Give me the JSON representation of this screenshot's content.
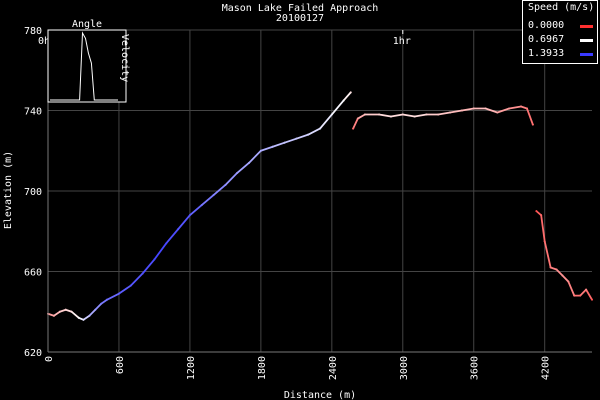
{
  "chart_data": {
    "type": "line",
    "title": "Mason Lake Failed Approach",
    "subtitle": "20100127",
    "xlabel": "Distance (m)",
    "ylabel": "Elevation (m)",
    "xlim": [
      0,
      4600
    ],
    "ylim": [
      620,
      780
    ],
    "xticks": [
      "0",
      "600",
      "1200",
      "1800",
      "2400",
      "3000",
      "3600",
      "4200"
    ],
    "yticks": [
      "620",
      "660",
      "700",
      "740",
      "780"
    ],
    "grid": true,
    "time_markers": [
      {
        "label": "0h",
        "x": 0
      },
      {
        "label": "1hr",
        "x": 3000
      }
    ],
    "legend": {
      "title": "Speed (m/s)",
      "placement": "top-right",
      "entries": [
        {
          "label": "0.0000",
          "color": "#ff3030"
        },
        {
          "label": "0.6967",
          "color": "#ffffff"
        },
        {
          "label": "1.3933",
          "color": "#3a3aff"
        }
      ]
    },
    "inset": {
      "title": "Angle",
      "side_label": "Velocity",
      "values": [
        0,
        0,
        0,
        0,
        0,
        0,
        0,
        0,
        0,
        0,
        0,
        1.0,
        0.92,
        0.7,
        0.55,
        0,
        0,
        0,
        0,
        0,
        0,
        0,
        0,
        0
      ]
    },
    "series": [
      {
        "name": "track",
        "points": [
          [
            0,
            639,
            0.35
          ],
          [
            50,
            638,
            0.4
          ],
          [
            100,
            640,
            0.5
          ],
          [
            150,
            641,
            0.55
          ],
          [
            200,
            640,
            0.6
          ],
          [
            260,
            637,
            0.7
          ],
          [
            300,
            636,
            0.8
          ],
          [
            350,
            638,
            0.95
          ],
          [
            400,
            641,
            1.05
          ],
          [
            450,
            644,
            1.15
          ],
          [
            500,
            646,
            1.2
          ],
          [
            600,
            649,
            1.25
          ],
          [
            700,
            653,
            1.3
          ],
          [
            800,
            659,
            1.3
          ],
          [
            900,
            666,
            1.35
          ],
          [
            1000,
            674,
            1.35
          ],
          [
            1100,
            681,
            1.3
          ],
          [
            1200,
            688,
            1.3
          ],
          [
            1300,
            693,
            1.2
          ],
          [
            1400,
            698,
            1.15
          ],
          [
            1500,
            703,
            1.1
          ],
          [
            1600,
            709,
            1.05
          ],
          [
            1700,
            714,
            1.0
          ],
          [
            1800,
            720,
            1.0
          ],
          [
            1900,
            722,
            0.95
          ],
          [
            2000,
            724,
            0.9
          ],
          [
            2100,
            726,
            0.9
          ],
          [
            2200,
            728,
            0.85
          ],
          [
            2300,
            731,
            0.8
          ],
          [
            2400,
            738,
            0.75
          ],
          [
            2500,
            745,
            0.7
          ],
          [
            2560,
            749,
            0.6
          ]
        ]
      },
      {
        "name": "track-2",
        "points": [
          [
            2580,
            731,
            0.2
          ],
          [
            2620,
            736,
            0.35
          ],
          [
            2680,
            738,
            0.5
          ],
          [
            2800,
            738,
            0.55
          ],
          [
            2900,
            737,
            0.6
          ],
          [
            3000,
            738,
            0.55
          ],
          [
            3100,
            737,
            0.6
          ],
          [
            3200,
            738,
            0.55
          ],
          [
            3300,
            738,
            0.5
          ],
          [
            3400,
            739,
            0.5
          ],
          [
            3500,
            740,
            0.45
          ],
          [
            3600,
            741,
            0.45
          ],
          [
            3700,
            741,
            0.5
          ],
          [
            3800,
            739,
            0.4
          ],
          [
            3900,
            741,
            0.35
          ],
          [
            4000,
            742,
            0.3
          ],
          [
            4050,
            741,
            0.25
          ],
          [
            4100,
            733,
            0.2
          ]
        ]
      },
      {
        "name": "track-3",
        "points": [
          [
            4130,
            690,
            0.1
          ],
          [
            4170,
            688,
            0.2
          ],
          [
            4200,
            675,
            0.2
          ],
          [
            4250,
            662,
            0.25
          ],
          [
            4300,
            661,
            0.3
          ],
          [
            4350,
            658,
            0.35
          ],
          [
            4400,
            655,
            0.3
          ],
          [
            4450,
            648,
            0.25
          ],
          [
            4500,
            648,
            0.2
          ],
          [
            4550,
            651,
            0.3
          ],
          [
            4600,
            646,
            0.1
          ]
        ]
      }
    ]
  }
}
